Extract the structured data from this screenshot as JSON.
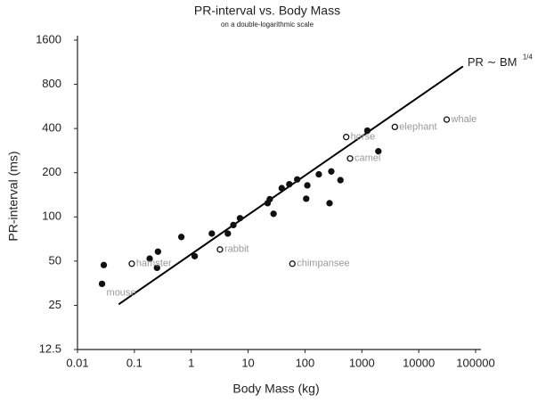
{
  "chart_data": {
    "type": "scatter",
    "title": "PR-interval vs. Body Mass",
    "subtitle": "on a double-logarithmic scale",
    "x_label": "Body Mass (kg)",
    "y_label": "PR-interval (ms)",
    "x_scale": "log",
    "y_scale": "log",
    "xlim": [
      0.01,
      100000
    ],
    "xticks": [
      0.01,
      0.1,
      1,
      10,
      100,
      1000,
      10000,
      100000
    ],
    "ylim": [
      12.5,
      1600
    ],
    "yticks": [
      12.5,
      25,
      50,
      100,
      200,
      400,
      800,
      1600
    ],
    "series": [
      {
        "marker": "filled",
        "color": "#111111",
        "x": [
          0.029,
          0.027,
          0.186,
          0.26,
          0.25,
          0.67,
          1.15,
          2.3,
          4.4,
          5.5,
          7.2,
          22,
          24,
          28,
          39,
          53,
          73,
          110,
          105,
          175,
          290,
          270,
          420,
          1250,
          1950
        ],
        "y": [
          47,
          35,
          52,
          58,
          45,
          73,
          54,
          77,
          77,
          88,
          98,
          124,
          132,
          105,
          157,
          167,
          180,
          164,
          133,
          195,
          204,
          124,
          178,
          387,
          280
        ],
        "labels": [
          null,
          "mouse",
          null,
          null,
          null,
          null,
          null,
          null,
          null,
          null,
          null,
          null,
          null,
          null,
          null,
          null,
          null,
          null,
          null,
          null,
          null,
          null,
          null,
          null,
          null
        ]
      },
      {
        "marker": "open",
        "color": "#111111",
        "x": [
          0.09,
          3.2,
          60,
          530,
          620,
          3800,
          31000
        ],
        "y": [
          48,
          60,
          48,
          350,
          250,
          410,
          460
        ],
        "labels": [
          "hamster",
          "rabbit",
          "chimpansee",
          "horse",
          "camel",
          "elephant",
          "whale"
        ]
      }
    ],
    "fit_line": {
      "x": [
        0.053,
        60000
      ],
      "y": [
        25.4,
        1060
      ],
      "label": "PR ∼ BM",
      "exponent": "1/4",
      "color": "#000000"
    }
  }
}
